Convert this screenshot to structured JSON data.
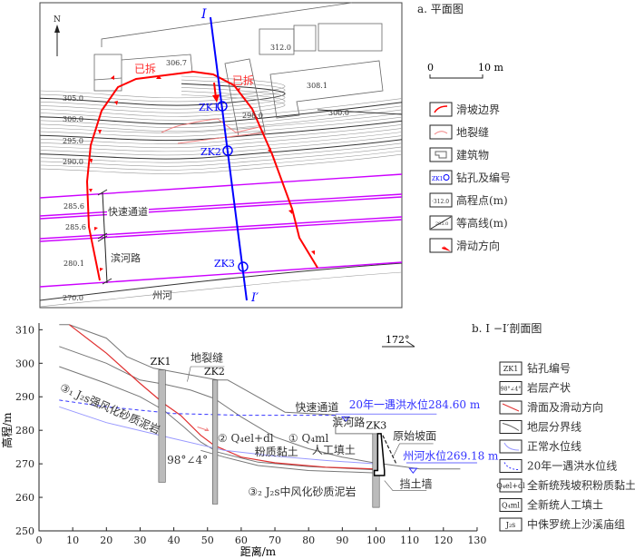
{
  "plan": {
    "title": "a. 平面图",
    "north": "N",
    "section_start": "I",
    "section_end": "I′",
    "demolished_1": "已拆",
    "demolished_2": "已拆",
    "elevations": [
      "306.7",
      "312.0",
      "308.1",
      "298.0",
      "285.6",
      "285.6",
      "280.1"
    ],
    "contours": [
      "305.0",
      "300.0",
      "295.0",
      "290.0",
      "300.0",
      "270.0"
    ],
    "boreholes": [
      "ZK1",
      "ZK2",
      "ZK3"
    ],
    "expressway": "快速通道",
    "riverside_road": "滨河路",
    "river": "州河",
    "scale": {
      "zero": "0",
      "ten": "10 m"
    },
    "legend": [
      {
        "label": "滑坡边界",
        "icon": "landslide-boundary"
      },
      {
        "label": "地裂缝",
        "icon": "ground-crack"
      },
      {
        "label": "建筑物",
        "icon": "building"
      },
      {
        "label": "钻孔及编号",
        "icon": "borehole",
        "sample": "ZK1"
      },
      {
        "label": "高程点(m)",
        "icon": "elevation-point",
        "sample": "·312.0"
      },
      {
        "label": "等高线(m)",
        "icon": "contour",
        "sample": "295.0"
      },
      {
        "label": "滑动方向",
        "icon": "slide-direction"
      }
    ],
    "colors": {
      "boundary": "#ff0000",
      "section": "#0000ff",
      "road": "#cc00ff",
      "crack": "#f08080"
    }
  },
  "section": {
    "title": "b. I −I′剖面图",
    "azimuth": "172°",
    "xlabel": "距离/m",
    "ylabel": "高程/m",
    "xticks": [
      "0",
      "10",
      "20",
      "30",
      "40",
      "50",
      "60",
      "70",
      "80",
      "90",
      "100",
      "110",
      "120",
      "130"
    ],
    "yticks": [
      "250",
      "260",
      "270",
      "280",
      "290",
      "300",
      "310"
    ],
    "labels": {
      "crack": "地裂缝",
      "zk1": "ZK1",
      "zk2": "ZK2",
      "zk3": "ZK3",
      "strong": "③₁ J₂s强风化砂质泥岩",
      "moderate": "③₂ J₂s中风化砂质泥岩",
      "clay_code": "② Q₄el+dl",
      "clay": "粉质黏土",
      "fill_code": "① Q₄ml",
      "fill": "人工填土",
      "dip": "98°∠4°",
      "expressway": "快速通道",
      "road": "滨河路",
      "original_slope": "原始坡面",
      "wall": "挡土墙",
      "flood": "20年一遇洪水位284.60 m",
      "river_level": "州河水位269.18 m"
    },
    "legend": [
      {
        "label": "钻孔编号",
        "sample": "ZK1"
      },
      {
        "label": "岩层产状",
        "sample": "98°∠4°"
      },
      {
        "label": "滑面及滑动方向"
      },
      {
        "label": "地层分界线"
      },
      {
        "label": "正常水位线"
      },
      {
        "label": "20年一遇洪水位线"
      },
      {
        "label": "全新统残坡积粉质黏土",
        "sample": "Q₄el+dl"
      },
      {
        "label": "全新统人工填土",
        "sample": "Q₄ml"
      },
      {
        "label": "中侏罗统上沙溪庙组",
        "sample": "J₂s"
      }
    ],
    "colors": {
      "slip": "#e03030",
      "water": "#9999ff",
      "flood": "#3333ff",
      "strata": "#666666"
    }
  }
}
